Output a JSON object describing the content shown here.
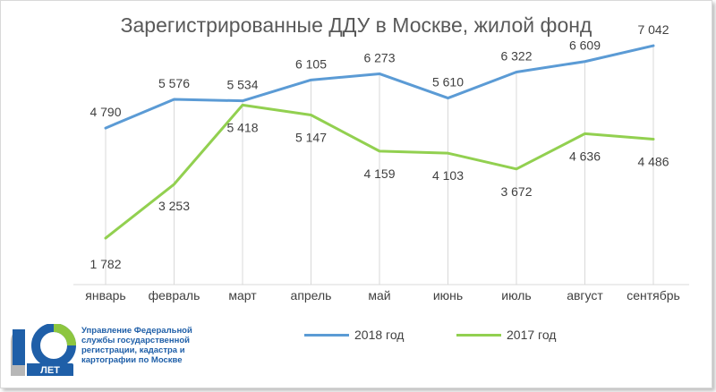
{
  "chart_data": {
    "type": "line",
    "title": "Зарегистрированные ДДУ в Москве, жилой фонд",
    "categories": [
      "январь",
      "февраль",
      "март",
      "апрель",
      "май",
      "июнь",
      "июль",
      "август",
      "сентябрь"
    ],
    "series": [
      {
        "name": "2018 год",
        "color": "#5b9bd5",
        "values": [
          4790,
          5576,
          5534,
          6105,
          6273,
          5610,
          6322,
          6609,
          7042
        ],
        "labels": [
          "4 790",
          "5 576",
          "5 534",
          "6 105",
          "6 273",
          "5 610",
          "6 322",
          "6 609",
          "7 042"
        ]
      },
      {
        "name": "2017 год",
        "color": "#92d050",
        "values": [
          1782,
          3253,
          5418,
          5147,
          4159,
          4103,
          3672,
          4636,
          4486
        ],
        "labels": [
          "1 782",
          "3 253",
          "5 418",
          "5 147",
          "4 159",
          "4 103",
          "3 672",
          "4 636",
          "4 486"
        ]
      }
    ],
    "ylim": [
      0,
      7500
    ],
    "grid": "vertical drop lines",
    "legend": "bottom"
  },
  "logo": {
    "number": "10",
    "text": "ЛЕТ",
    "org": "Управление Федеральной службы государственной регистрации, кадастра и картографии по Москве",
    "colors": {
      "blue": "#1f5fa8",
      "green": "#8dc63f",
      "gray": "#b7b7b7"
    }
  }
}
